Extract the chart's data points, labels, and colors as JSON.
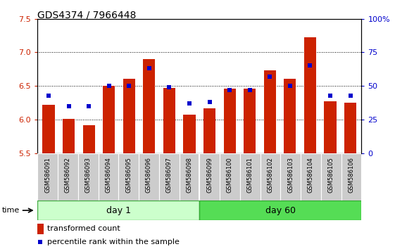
{
  "title": "GDS4374 / 7966448",
  "samples": [
    "GSM586091",
    "GSM586092",
    "GSM586093",
    "GSM586094",
    "GSM586095",
    "GSM586096",
    "GSM586097",
    "GSM586098",
    "GSM586099",
    "GSM586100",
    "GSM586101",
    "GSM586102",
    "GSM586103",
    "GSM586104",
    "GSM586105",
    "GSM586106"
  ],
  "transformed_count": [
    6.22,
    6.01,
    5.92,
    6.5,
    6.61,
    6.9,
    6.47,
    6.07,
    6.17,
    6.46,
    6.46,
    6.73,
    6.61,
    7.22,
    6.27,
    6.25
  ],
  "percentile_rank": [
    43,
    35,
    35,
    50,
    50,
    63,
    49,
    37,
    38,
    47,
    47,
    57,
    50,
    65,
    43,
    43
  ],
  "bar_color": "#cc2200",
  "dot_color": "#0000cc",
  "ylim": [
    5.5,
    7.5
  ],
  "ylim_right": [
    0,
    100
  ],
  "yticks_left": [
    5.5,
    6.0,
    6.5,
    7.0,
    7.5
  ],
  "yticks_right": [
    0,
    25,
    50,
    75,
    100
  ],
  "ytick_labels_right": [
    "0",
    "25",
    "50",
    "75",
    "100%"
  ],
  "day1_count": 8,
  "day60_count": 8,
  "day1_label": "day 1",
  "day60_label": "day 60",
  "day1_color": "#ccffcc",
  "day60_color": "#55dd55",
  "time_label": "time",
  "legend_bar_label": "transformed count",
  "legend_dot_label": "percentile rank within the sample",
  "xticklabel_bg": "#cccccc",
  "base": 5.5,
  "bar_width": 0.6
}
